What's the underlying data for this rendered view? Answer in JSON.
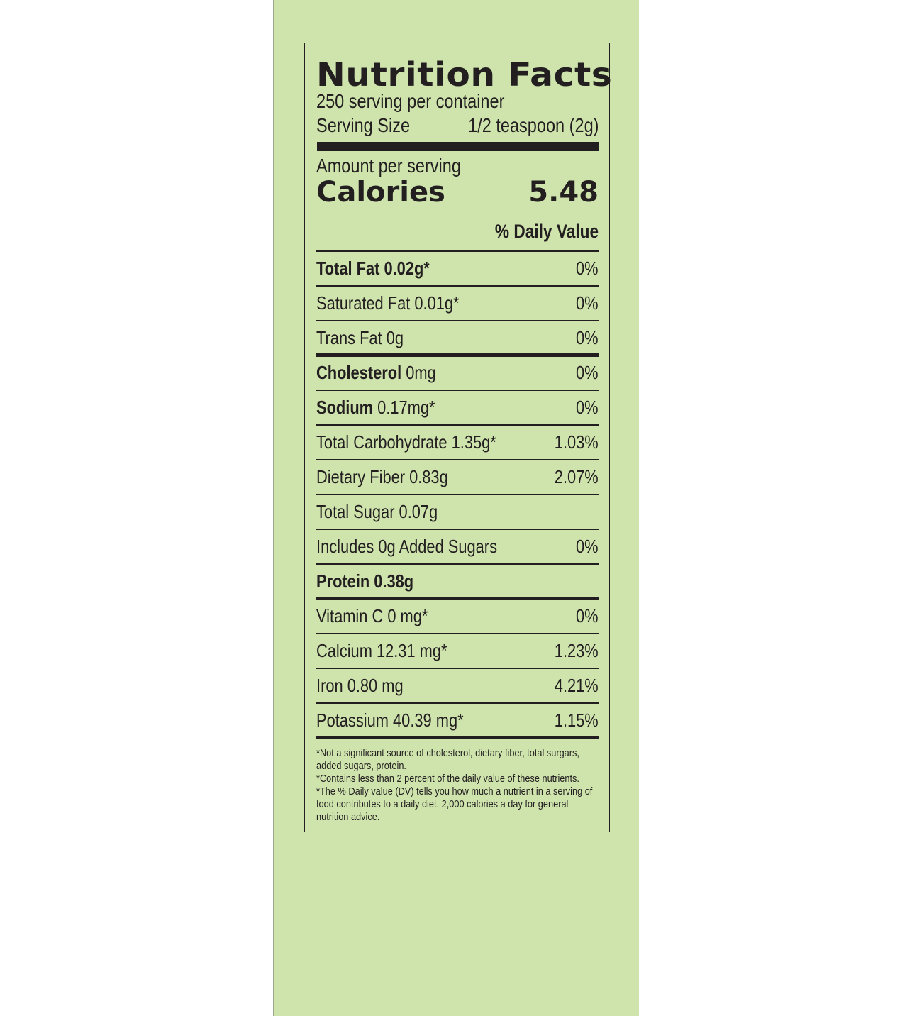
{
  "label": {
    "title": "Nutrition Facts",
    "servings_per_container": "250 serving per container",
    "serving_size_label": "Serving Size",
    "serving_size_value": "1/2 teaspoon (2g)",
    "amount_per_serving": "Amount per serving",
    "calories_label": "Calories",
    "calories_value": "5.48",
    "daily_value_header": "% Daily Value",
    "nutrients": [
      {
        "bold": "Total Fat 0.02g*",
        "text": "",
        "dv": "0%"
      },
      {
        "bold": "",
        "text": "Saturated Fat 0.01g*",
        "dv": "0%"
      },
      {
        "bold": "",
        "text": "Trans Fat 0g",
        "dv": "0%"
      },
      {
        "bold": "Cholesterol",
        "text": " 0mg",
        "dv": "0%"
      },
      {
        "bold": "Sodium",
        "text": " 0.17mg*",
        "dv": "0%"
      },
      {
        "bold": "",
        "text": "Total Carbohydrate 1.35g*",
        "dv": "1.03%"
      },
      {
        "bold": "",
        "text": "Dietary Fiber 0.83g",
        "dv": "2.07%"
      },
      {
        "bold": "",
        "text": "Total Sugar 0.07g",
        "dv": ""
      },
      {
        "bold": "",
        "text": "Includes 0g Added Sugars",
        "dv": "0%"
      },
      {
        "bold": "Protein 0.38g",
        "text": "",
        "dv": ""
      },
      {
        "bold": "",
        "text": "Vitamin C 0 mg*",
        "dv": "0%"
      },
      {
        "bold": "",
        "text": "Calcium 12.31 mg*",
        "dv": "1.23%"
      },
      {
        "bold": "",
        "text": "Iron 0.80 mg",
        "dv": "4.21%"
      },
      {
        "bold": "",
        "text": "Potassium 40.39 mg*",
        "dv": "1.15%"
      }
    ],
    "footnotes": [
      "*Not a significant source of cholesterol, dietary fiber, total surgars,",
      "added sugars, protein.",
      "*Contains less than 2 percent of the daily value of these nutrients.",
      "*The % Daily value (DV) tells you how much a nutrient in a serving of",
      "food contributes to a daily diet. 2,000 calories a day for general",
      "nutrition advice."
    ]
  },
  "colors": {
    "background": "#cfe4ad",
    "ink": "#231f20"
  }
}
